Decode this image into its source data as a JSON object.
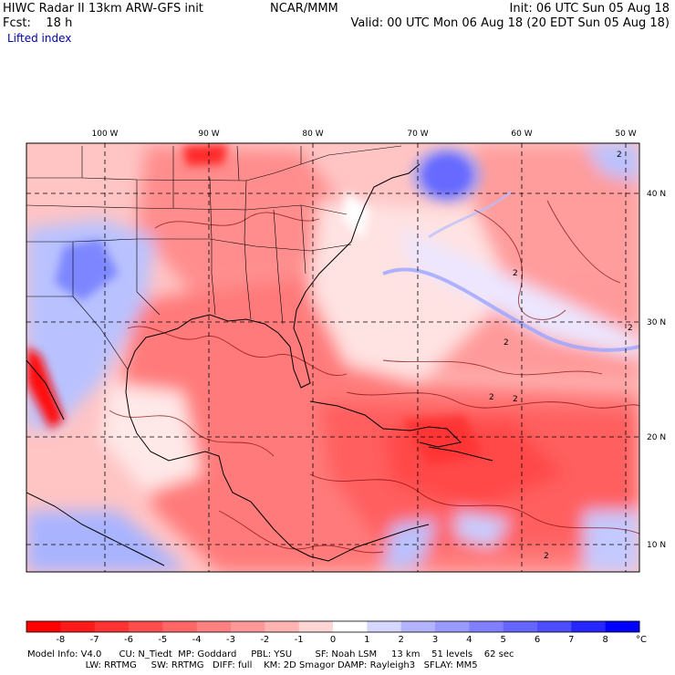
{
  "header": {
    "left_line1": "HIWC Radar II 13km ARW-GFS init",
    "left_line2": "Fcst:    18 h",
    "center_line1": "NCAR/MMM",
    "right_line1": "Init: 06 UTC Sun 05 Aug 18",
    "right_line2": "Valid: 00 UTC Mon 06 Aug 18 (20 EDT Sun 05 Aug 18)",
    "field_name": "Lifted index"
  },
  "map": {
    "lon_labels": [
      "100 W",
      "90 W",
      "80 W",
      "70 W",
      "60 W",
      "50 W"
    ],
    "lon_values": [
      -100,
      -90,
      -80,
      -70,
      -60,
      -50
    ],
    "lat_labels": [
      "40 N",
      "30 N",
      "20 N",
      "10 N"
    ],
    "lat_values": [
      40,
      30,
      20,
      10
    ],
    "contour_labels": [
      "2",
      "2",
      "2",
      "2",
      "2",
      "2",
      "2"
    ],
    "extent": {
      "lon_min": -108.5,
      "lon_max": -49.5,
      "lat_min": 8,
      "lat_max": 46.5
    },
    "colors": {
      "negative_strong": "#ff0000",
      "positive_strong": "#0000ff",
      "neutral": "#ffffff"
    }
  },
  "colorbar": {
    "values": [
      "-8",
      "-7",
      "-6",
      "-5",
      "-4",
      "-3",
      "-2",
      "-1",
      "0",
      "1",
      "2",
      "3",
      "4",
      "5",
      "6",
      "7",
      "8"
    ],
    "unit": "°C",
    "colors": [
      "#ff0000",
      "#ff1a1a",
      "#ff3333",
      "#ff4d4d",
      "#ff6666",
      "#ff8080",
      "#ff9999",
      "#ffb3b3",
      "#ffd6d6",
      "#ffffff",
      "#d6d6ff",
      "#b3b3ff",
      "#9999ff",
      "#8080ff",
      "#6666ff",
      "#4d4dff",
      "#2626ff",
      "#0000ff"
    ]
  },
  "footer": {
    "line1": "Model Info: V4.0      CU: N_Tiedt  MP: Goddard     PBL: YSU        SF: Noah LSM     13 km    51 levels    62 sec",
    "line2": "                    LW: RRTMG     SW: RRTMG   DIFF: full    KM: 2D Smagor DAMP: Rayleigh3   SFLAY: MM5"
  }
}
